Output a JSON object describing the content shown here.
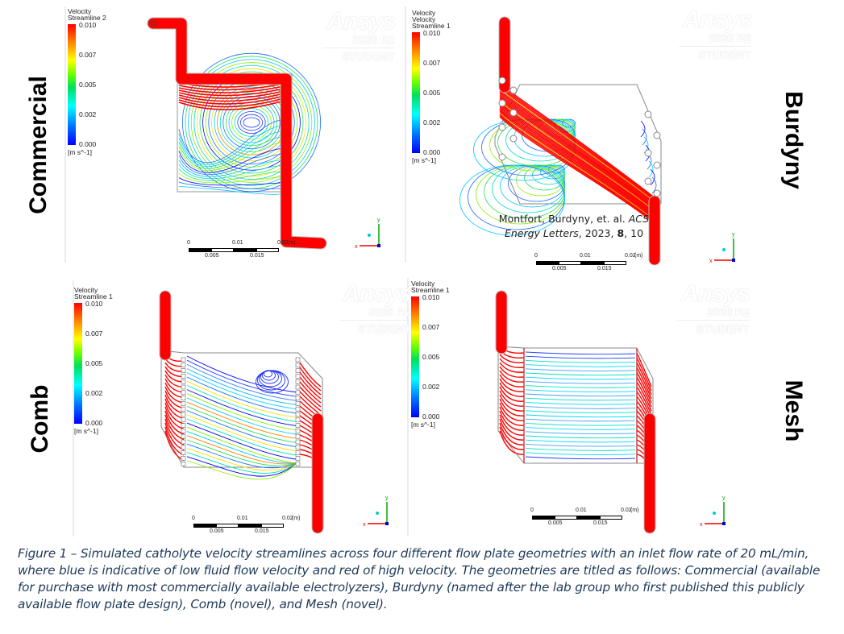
{
  "panels": [
    {
      "id": "commercial",
      "label": "Commercial",
      "legend": {
        "title": [
          "Velocity",
          "Streamline 2"
        ],
        "ticks": [
          "0.010",
          "0.007",
          "0.005",
          "0.002",
          "0.000"
        ],
        "unit": "[m s^-1]"
      },
      "scale": {
        "top": [
          "0",
          "0.01",
          "0.02"
        ],
        "bottom": [
          "0.005",
          "0.015"
        ],
        "unit": "(m)"
      }
    },
    {
      "id": "burdyny",
      "label": "Burdyny",
      "legend": {
        "title": [
          "Velocity",
          "Velocity",
          "Streamline 1"
        ],
        "ticks": [
          "0.010",
          "0.007",
          "0.005",
          "0.002",
          "0.000"
        ],
        "unit": "[m s^-1]"
      },
      "scale": {
        "top": [
          "0",
          "0.01",
          "0.02"
        ],
        "bottom": [
          "0.005",
          "0.015"
        ],
        "unit": "(m)"
      }
    },
    {
      "id": "comb",
      "label": "Comb",
      "legend": {
        "title": [
          "Velocity",
          "Streamline 1"
        ],
        "ticks": [
          "0.010",
          "0.007",
          "0.005",
          "0.002",
          "0.000"
        ],
        "unit": "[m s^-1]"
      },
      "scale": {
        "top": [
          "0",
          "0.01",
          "0.02"
        ],
        "bottom": [
          "0.005",
          "0.015"
        ],
        "unit": "(m)"
      }
    },
    {
      "id": "mesh",
      "label": "Mesh",
      "legend": {
        "title": [
          "Velocity",
          "Streamline 1"
        ],
        "ticks": [
          "0.010",
          "0.007",
          "0.005",
          "0.002",
          "0.000"
        ],
        "unit": "[m s^-1]"
      },
      "scale": {
        "top": [
          "0",
          "0.01",
          "0.02"
        ],
        "bottom": [
          "0.005",
          "0.015"
        ],
        "unit": "(m)"
      }
    }
  ],
  "watermark": {
    "brand": "Ansys",
    "version": "2020 R2",
    "edition": "STUDENT"
  },
  "axes": {
    "x": "x",
    "y": "y"
  },
  "citation": {
    "authors": "Montfort, Burdyny, et. al.",
    "journal_a": "ACS",
    "journal_b": "Energy Letters",
    "year": "2023,",
    "volume": "8",
    "issue": ", 10"
  },
  "caption": "Figure 1 – Simulated catholyte velocity streamlines across four different flow plate geometries with an inlet flow rate of 20 mL/min, where blue is indicative of low fluid flow velocity and red of high velocity.  The geometries are titled as follows: Commercial (available for purchase with most commercially available electrolyzers), Burdyny (named after the lab group who first published this publicly available flow plate design), Comb (novel), and Mesh (novel).",
  "colors": {
    "high": "#ff0000",
    "low": "#0000ff",
    "caption": "#1f3a5a"
  }
}
